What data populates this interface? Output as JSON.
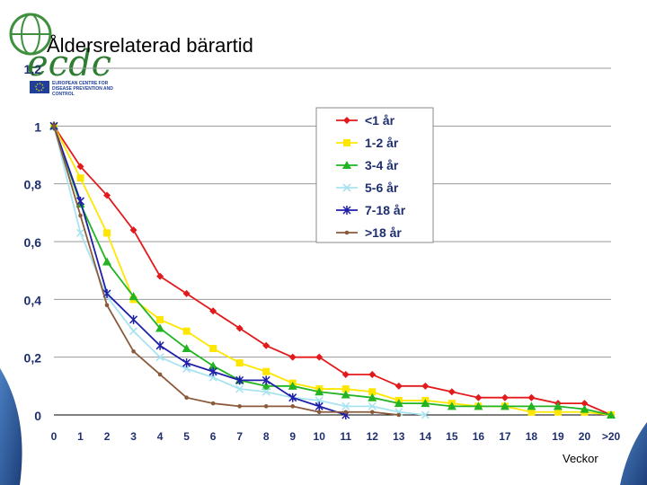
{
  "logo": {
    "text": "ecdc",
    "caption_lines": [
      "EUROPEAN CENTRE FOR",
      "DISEASE PREVENTION AND",
      "CONTROL"
    ]
  },
  "slide": {
    "title": "Åldersrelaterad bärartid",
    "footer_label": "Veckor"
  },
  "chart_data": {
    "type": "line",
    "title": "",
    "xlabel": "Veckor",
    "ylabel": "",
    "x": [
      "0",
      "1",
      "2",
      "3",
      "4",
      "5",
      "6",
      "7",
      "8",
      "9",
      "10",
      "11",
      "12",
      "13",
      "14",
      "15",
      "16",
      "17",
      "18",
      "19",
      "20",
      ">20"
    ],
    "y_ticks": [
      "0",
      "0,2",
      "0,4",
      "0,6",
      "0,8",
      "1",
      "1,2"
    ],
    "ylim": [
      0,
      1.2
    ],
    "grid": "horizontal",
    "legend_position": "top-right",
    "series": [
      {
        "name": "<1 år",
        "color": "#e31a1c",
        "marker": "diamond",
        "values": [
          1,
          0.86,
          0.76,
          0.64,
          0.48,
          0.42,
          0.36,
          0.3,
          0.24,
          0.2,
          0.2,
          0.14,
          0.14,
          0.1,
          0.1,
          0.08,
          0.06,
          0.06,
          0.06,
          0.04,
          0.04,
          0
        ]
      },
      {
        "name": "1-2 år",
        "color": "#ffe600",
        "marker": "square",
        "values": [
          1,
          0.82,
          0.63,
          0.4,
          0.33,
          0.29,
          0.23,
          0.18,
          0.15,
          0.11,
          0.09,
          0.09,
          0.08,
          0.05,
          0.05,
          0.04,
          0.03,
          0.03,
          0.01,
          0.01,
          0.01,
          0
        ]
      },
      {
        "name": "3-4 år",
        "color": "#22b422",
        "marker": "triangle",
        "values": [
          1,
          0.73,
          0.53,
          0.41,
          0.3,
          0.23,
          0.17,
          0.12,
          0.1,
          0.1,
          0.08,
          0.07,
          0.06,
          0.04,
          0.04,
          0.03,
          0.03,
          0.03,
          0.03,
          0.03,
          0.02,
          0
        ]
      },
      {
        "name": "5-6 år",
        "color": "#a8e4f0",
        "marker": "x",
        "values": [
          1,
          0.63,
          0.41,
          0.29,
          0.2,
          0.16,
          0.13,
          0.09,
          0.08,
          0.06,
          0.05,
          0.03,
          0.03,
          0.01,
          0,
          null,
          null,
          null,
          null,
          null,
          null,
          null
        ]
      },
      {
        "name": "7-18 år",
        "color": "#1f1fa8",
        "marker": "asterisk",
        "values": [
          1,
          0.74,
          0.42,
          0.33,
          0.24,
          0.18,
          0.15,
          0.12,
          0.12,
          0.06,
          0.03,
          0,
          null,
          null,
          null,
          null,
          null,
          null,
          null,
          null,
          null,
          null
        ]
      },
      {
        "name": ">18 år",
        "color": "#8b5a3c",
        "marker": "dot",
        "values": [
          1,
          0.69,
          0.38,
          0.22,
          0.14,
          0.06,
          0.04,
          0.03,
          0.03,
          0.03,
          0.01,
          0.01,
          0.01,
          0,
          null,
          null,
          null,
          null,
          null,
          null,
          null,
          null
        ]
      }
    ]
  }
}
